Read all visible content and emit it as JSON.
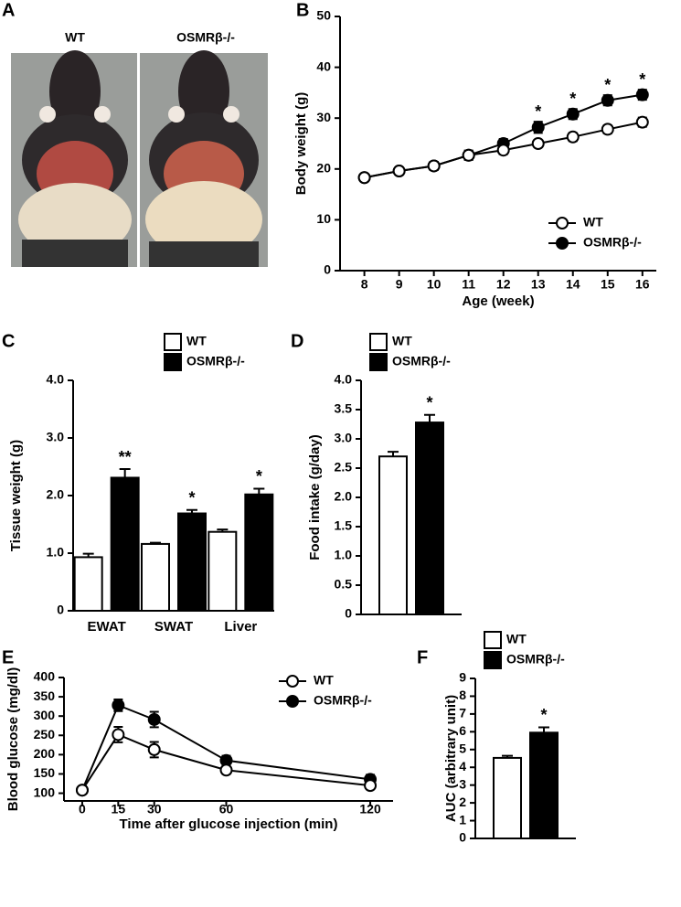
{
  "photo": {
    "panel_label": "A",
    "labels": [
      "WT",
      "OSMRβ-/-"
    ]
  },
  "chart_data": [
    {
      "type": "line",
      "panel_label": "B",
      "ylabel": "Body weight (g)",
      "xlabel": "Age (week)",
      "x": [
        8,
        9,
        10,
        11,
        12,
        13,
        14,
        15,
        16
      ],
      "xlim": [
        7.3,
        16.4
      ],
      "xticks": [
        8,
        9,
        10,
        11,
        12,
        13,
        14,
        15,
        16
      ],
      "ylim": [
        0,
        50
      ],
      "yticks": [
        0,
        10,
        20,
        30,
        40,
        50
      ],
      "legend": "lower right",
      "series": [
        {
          "name": "WT",
          "color": "#ffffff",
          "values": [
            18.3,
            19.6,
            20.6,
            22.7,
            23.7,
            25.0,
            26.3,
            27.8,
            29.2
          ],
          "errors": [
            0.5,
            0.7,
            0.8,
            0.9,
            0.8,
            0.6,
            0.8,
            0.8,
            0.9
          ],
          "significance": [
            null,
            null,
            null,
            null,
            null,
            null,
            null,
            null,
            null
          ]
        },
        {
          "name": "OSMRβ-/-",
          "color": "#000000",
          "values": [
            18.3,
            19.6,
            20.6,
            22.7,
            25.0,
            28.2,
            30.8,
            33.5,
            34.6
          ],
          "errors": [
            0.5,
            0.7,
            0.8,
            0.9,
            0.9,
            1.1,
            1.0,
            1.0,
            1.0
          ],
          "significance": [
            null,
            null,
            null,
            null,
            null,
            "*",
            "*",
            "*",
            "*"
          ]
        }
      ]
    },
    {
      "type": "bar",
      "panel_label": "C",
      "ylabel": "Tissue weight (g)",
      "categories": [
        "EWAT",
        "SWAT",
        "Liver"
      ],
      "ylim": [
        0,
        4
      ],
      "yticks": [
        0,
        {
          "value": 1,
          "label": "1.0"
        },
        {
          "value": 2,
          "label": "2.0"
        },
        {
          "value": 3,
          "label": "3.0"
        },
        {
          "value": 4,
          "label": "4.0"
        }
      ],
      "legend": "top center",
      "series": [
        {
          "name": "WT",
          "color": "#ffffff",
          "values": [
            0.93,
            1.16,
            1.37
          ],
          "errors": [
            0.06,
            0.02,
            0.04
          ],
          "significance": [
            null,
            null,
            null
          ]
        },
        {
          "name": "OSMRβ-/-",
          "color": "#000000",
          "values": [
            2.31,
            1.69,
            2.02
          ],
          "errors": [
            0.15,
            0.06,
            0.1
          ],
          "significance": [
            "**",
            "*",
            "*"
          ]
        }
      ]
    },
    {
      "type": "bar",
      "panel_label": "D",
      "ylabel": "Food intake (g/day)",
      "categories": [
        null
      ],
      "ylim": [
        0,
        4
      ],
      "yticks": [
        0,
        0.5,
        {
          "value": 1,
          "label": "1.0"
        },
        1.5,
        {
          "value": 2,
          "label": "2.0"
        },
        2.5,
        {
          "value": 3,
          "label": "3.0"
        },
        3.5,
        {
          "value": 4,
          "label": "4.0"
        }
      ],
      "legend": "top left",
      "series": [
        {
          "name": "WT",
          "color": "#ffffff",
          "values": [
            2.7
          ],
          "errors": [
            0.08
          ],
          "significance": [
            null
          ]
        },
        {
          "name": "OSMRβ-/-",
          "color": "#000000",
          "values": [
            3.28
          ],
          "errors": [
            0.13
          ],
          "significance": [
            "*"
          ]
        }
      ]
    },
    {
      "type": "line",
      "panel_label": "E",
      "ylabel": "Blood glucose (mg/dl)",
      "xlabel": "Time after glucose injection (min)",
      "x": [
        0,
        15,
        30,
        60,
        120
      ],
      "xlim": [
        -7.6,
        129.5
      ],
      "xticks": [
        0,
        15,
        30,
        60,
        120
      ],
      "ylim": [
        80,
        400
      ],
      "yticks": [
        100,
        150,
        200,
        250,
        300,
        350,
        400
      ],
      "legend": "upper right",
      "series": [
        {
          "name": "WT",
          "color": "#ffffff",
          "values": [
            108,
            252,
            213,
            160,
            120
          ],
          "errors": [
            8,
            20,
            20,
            10,
            8
          ],
          "significance": [
            null,
            null,
            null,
            null,
            null
          ]
        },
        {
          "name": "OSMRβ-/-",
          "color": "#000000",
          "values": [
            108,
            328,
            291,
            185,
            136
          ],
          "errors": [
            8,
            15,
            20,
            12,
            12
          ],
          "significance": [
            null,
            null,
            null,
            null,
            null
          ]
        }
      ]
    },
    {
      "type": "bar",
      "panel_label": "F",
      "ylabel": "AUC (arbitrary unit)",
      "categories": [
        null
      ],
      "ylim": [
        0,
        9
      ],
      "yticks": [
        0,
        1,
        2,
        3,
        4,
        5,
        6,
        7,
        8,
        9
      ],
      "legend": "top left",
      "series": [
        {
          "name": "WT",
          "color": "#ffffff",
          "values": [
            4.53
          ],
          "errors": [
            0.12
          ],
          "significance": [
            null
          ]
        },
        {
          "name": "OSMRβ-/-",
          "color": "#000000",
          "values": [
            5.95
          ],
          "errors": [
            0.3
          ],
          "significance": [
            "*"
          ]
        }
      ]
    }
  ]
}
